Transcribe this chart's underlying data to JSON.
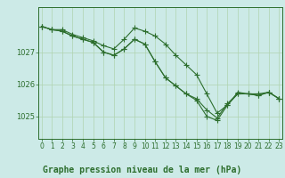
{
  "title": "Graphe pression niveau de la mer (hPa)",
  "bg_color": "#cceae7",
  "line_color": "#2d6e2d",
  "grid_color": "#b0d4b0",
  "ylim": [
    1024.3,
    1028.4
  ],
  "xlim": [
    -0.3,
    23.3
  ],
  "yticks": [
    1025,
    1026,
    1027
  ],
  "xticks": [
    0,
    1,
    2,
    3,
    4,
    5,
    6,
    7,
    8,
    9,
    10,
    11,
    12,
    13,
    14,
    15,
    16,
    17,
    18,
    19,
    20,
    21,
    22,
    23
  ],
  "line1_x": [
    0,
    1,
    2,
    3,
    4,
    5,
    6,
    7,
    8,
    9,
    10,
    11,
    12,
    13,
    14,
    15,
    16,
    17,
    18,
    19,
    20,
    21,
    22,
    23
  ],
  "line1_y": [
    1027.8,
    1027.7,
    1027.7,
    1027.55,
    1027.45,
    1027.35,
    1027.2,
    1027.1,
    1027.4,
    1027.75,
    1027.65,
    1027.5,
    1027.25,
    1026.9,
    1026.6,
    1026.3,
    1025.7,
    1025.1,
    1025.35,
    1025.75,
    1025.7,
    1025.7,
    1025.75,
    1025.55
  ],
  "line2_x": [
    0,
    1,
    2,
    3,
    4,
    5,
    6,
    7,
    8,
    9,
    10,
    11,
    12,
    13,
    14,
    15,
    16,
    17,
    18,
    19,
    20,
    21,
    22,
    23
  ],
  "line2_y": [
    1027.8,
    1027.7,
    1027.65,
    1027.5,
    1027.4,
    1027.3,
    1027.0,
    1026.9,
    1027.1,
    1027.4,
    1027.25,
    1026.7,
    1026.2,
    1025.95,
    1025.7,
    1025.55,
    1025.2,
    1024.95,
    1025.4,
    1025.7,
    1025.7,
    1025.65,
    1025.75,
    1025.55
  ],
  "line3_x": [
    0,
    1,
    2,
    3,
    4,
    5,
    6,
    7,
    8,
    9,
    10,
    11,
    12,
    13,
    14,
    15,
    16,
    17,
    18,
    19,
    20,
    21,
    22,
    23
  ],
  "line3_y": [
    1027.8,
    1027.7,
    1027.65,
    1027.5,
    1027.4,
    1027.3,
    1027.0,
    1026.9,
    1027.1,
    1027.4,
    1027.25,
    1026.7,
    1026.2,
    1025.95,
    1025.7,
    1025.5,
    1025.0,
    1024.87,
    1025.35,
    1025.7,
    1025.7,
    1025.65,
    1025.75,
    1025.55
  ],
  "marker": "+",
  "markersize": 4.0,
  "linewidth": 0.8,
  "title_fontsize": 7.0,
  "tick_fontsize": 5.5,
  "ylabel_fontsize": 6.0
}
